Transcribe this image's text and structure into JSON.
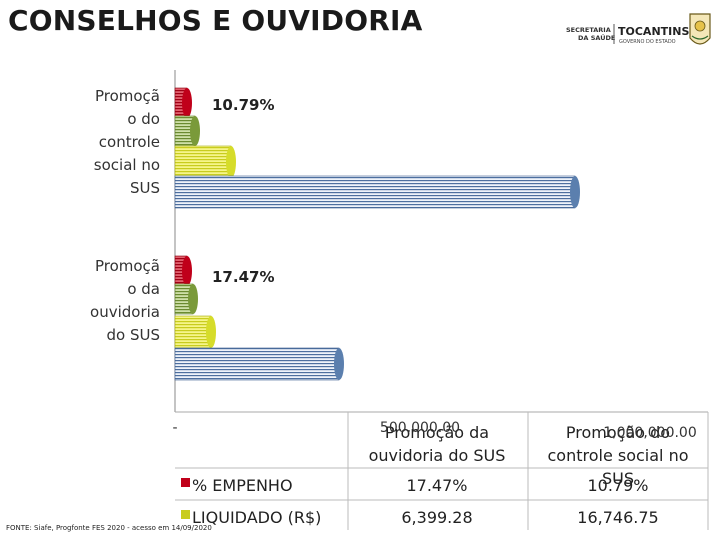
{
  "title": "CONSELHOS E OUVIDORIA",
  "logos": {
    "secretaria": [
      "SECRETARIA",
      "DA SAÚDE"
    ],
    "estado": "TOCANTINS",
    "governo": "GOVERNO DO ESTADO"
  },
  "source": "FONTE: Siafe, Progfonte FES 2020 - acesso em 14/09/2020",
  "chart_data": {
    "type": "bar",
    "orientation": "horizontal",
    "categories": [
      "Promoção da ouvidoria do SUS",
      "Promoção do controle social no SUS"
    ],
    "category_axis_labels": [
      "Promoçã o da ouvidoria do SUS",
      "Promoçã o do controle social no SUS"
    ],
    "series": [
      {
        "name": "% EMPENHO",
        "values": [
          17.47,
          10.79
        ],
        "labels": [
          "17.47%",
          "10.79%"
        ],
        "color": "#c0001a"
      },
      {
        "name": "LIQUIDADO (R$)",
        "values": [
          6399.28,
          16746.75
        ],
        "labels": [
          "6,399.28",
          "16,746.75"
        ],
        "color": "#c8cc1e"
      },
      {
        "values": [
          null,
          null
        ],
        "color": "#7a9a3a"
      },
      {
        "values": [
          null,
          null
        ],
        "color": "#5b7fae"
      }
    ],
    "x_ticks": [
      "-",
      "500,000.00",
      "1,000,000.00"
    ],
    "xlim": [
      0,
      1000000
    ],
    "colors": {
      "bar_red": "#c0001a",
      "bar_green": "#7a9a3a",
      "bar_yellow": "#d6dc2a",
      "bar_blue": "#5b7fae"
    }
  }
}
